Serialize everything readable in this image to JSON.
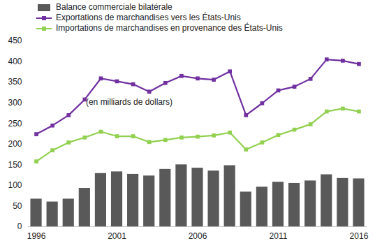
{
  "chart_data": {
    "type": "bar",
    "annotation": "(en milliards de dollars)",
    "x": [
      1996,
      1997,
      1998,
      1999,
      2000,
      2001,
      2002,
      2003,
      2004,
      2005,
      2006,
      2007,
      2008,
      2009,
      2010,
      2011,
      2012,
      2013,
      2014,
      2015,
      2016
    ],
    "xlim": [
      1995.5,
      2016.5
    ],
    "xticks": [
      1996,
      2001,
      2006,
      2011,
      2016
    ],
    "ylim": [
      0,
      450
    ],
    "yticks": [
      0,
      50,
      100,
      150,
      200,
      250,
      300,
      350,
      400,
      450
    ],
    "grid": false,
    "legend": "top-left",
    "series": [
      {
        "name": "Balance commerciale bilatérale",
        "type": "bar",
        "color": "#595959",
        "values": [
          67,
          60,
          67,
          93,
          129,
          133,
          127,
          123,
          139,
          150,
          142,
          135,
          148,
          84,
          96,
          108,
          105,
          111,
          126,
          117,
          116
        ]
      },
      {
        "name": "Exportations de marchandises vers les États-Unis",
        "type": "line",
        "color": "#7030a0",
        "marker": "square",
        "values": [
          224,
          245,
          270,
          308,
          359,
          352,
          345,
          327,
          348,
          365,
          359,
          356,
          376,
          270,
          299,
          330,
          339,
          358,
          405,
          402,
          394
        ]
      },
      {
        "name": "Importations de marchandises en provenance des États-Unis",
        "type": "line",
        "color": "#92d050",
        "marker": "square",
        "values": [
          158,
          185,
          204,
          216,
          230,
          219,
          219,
          205,
          210,
          216,
          218,
          221,
          228,
          187,
          204,
          222,
          235,
          248,
          279,
          286,
          279
        ]
      }
    ]
  }
}
